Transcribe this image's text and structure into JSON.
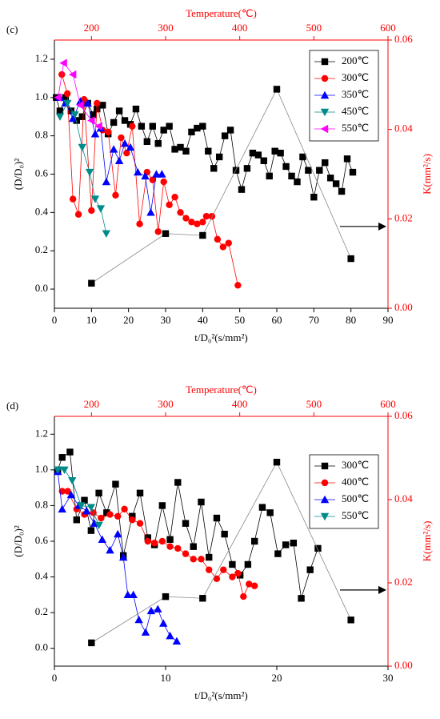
{
  "chart_data": [
    {
      "type": "line",
      "label": "(c)",
      "xlabel": "t/D₀²(s/mm²)",
      "ylabel": "(D/D₀)²",
      "x2label": "Temperature(℃)",
      "y2label": "K(mm²/s)",
      "xlim": [
        0,
        90
      ],
      "xticks": [
        0,
        10,
        20,
        30,
        40,
        50,
        60,
        70,
        80,
        90
      ],
      "ylim": [
        -0.1,
        1.3
      ],
      "yticks": [
        {
          "value": 0,
          "label": "0.0"
        },
        0.2,
        0.4,
        0.6,
        0.8,
        {
          "value": 1,
          "label": "1.0"
        },
        1.2
      ],
      "x2lim": [
        150,
        600
      ],
      "x2ticks": [
        200,
        300,
        400,
        500,
        600
      ],
      "y2lim": [
        0,
        0.06
      ],
      "y2ticks": [
        {
          "value": 0,
          "label": "0.00"
        },
        {
          "value": 0.02,
          "label": "0.02"
        },
        {
          "value": 0.04,
          "label": "0.04"
        },
        {
          "value": 0.06,
          "label": "0.06"
        }
      ],
      "legend": "upper right",
      "series": [
        {
          "name": "200℃",
          "color": "#000000",
          "marker": "square",
          "x": [
            0.5,
            1.5,
            3,
            4.5,
            6,
            7.5,
            9,
            10.5,
            11.5,
            13,
            14.5,
            16,
            17.5,
            19,
            20.5,
            22,
            23.5,
            25,
            26.5,
            28,
            29.5,
            31,
            32.5,
            34,
            35.5,
            37,
            38.5,
            40,
            41.5,
            43,
            44.5,
            46,
            47.5,
            49,
            50.5,
            52,
            53.5,
            55,
            56.5,
            58,
            59.5,
            61,
            62.5,
            64,
            65.5,
            67,
            68.5,
            70,
            71.5,
            73,
            74.5,
            76,
            77.5,
            79,
            80.5
          ],
          "values": [
            1.0,
            0.93,
            1.0,
            0.93,
            0.88,
            0.9,
            0.97,
            0.91,
            0.94,
            0.96,
            0.81,
            0.87,
            0.93,
            0.88,
            0.86,
            0.94,
            0.85,
            0.77,
            0.85,
            0.76,
            0.83,
            0.85,
            0.73,
            0.74,
            0.72,
            0.82,
            0.84,
            0.85,
            0.72,
            0.63,
            0.69,
            0.8,
            0.83,
            0.62,
            0.52,
            0.63,
            0.71,
            0.7,
            0.67,
            0.59,
            0.72,
            0.71,
            0.64,
            0.59,
            0.56,
            0.69,
            0.62,
            0.48,
            0.62,
            0.66,
            0.58,
            0.55,
            0.51,
            0.68,
            0.61
          ]
        },
        {
          "name": "300℃",
          "color": "#ff0000",
          "marker": "circle",
          "x": [
            2,
            3.5,
            5,
            6.5,
            8,
            10,
            11.5,
            13,
            14.5,
            16.5,
            18,
            19.5,
            21,
            23,
            25,
            26.5,
            28,
            29.5,
            31,
            32.5,
            34,
            35.5,
            37,
            38.5,
            40,
            41,
            42.5,
            44,
            45.5,
            47,
            49.5
          ],
          "values": [
            1.12,
            1.02,
            0.47,
            0.39,
            0.99,
            0.41,
            0.97,
            0.83,
            0.82,
            0.49,
            0.79,
            0.71,
            0.85,
            0.34,
            0.61,
            0.57,
            0.3,
            0.56,
            0.44,
            0.48,
            0.4,
            0.37,
            0.35,
            0.34,
            0.35,
            0.38,
            0.38,
            0.26,
            0.22,
            0.24,
            0.02
          ]
        },
        {
          "name": "350℃",
          "color": "#0000ff",
          "marker": "triangle-up",
          "x": [
            1.5,
            3,
            5,
            7,
            9,
            11,
            12.5,
            14,
            16,
            17.5,
            19,
            20.5,
            22.5,
            24.5,
            26,
            27.5,
            29
          ],
          "values": [
            1.0,
            0.97,
            0.89,
            0.98,
            0.97,
            0.81,
            0.84,
            0.56,
            0.73,
            0.67,
            0.76,
            0.74,
            0.61,
            0.59,
            0.4,
            0.6,
            0.6
          ]
        },
        {
          "name": "450℃",
          "color": "#008b8b",
          "marker": "triangle-down",
          "x": [
            1.5,
            3.5,
            5.5,
            7.5,
            9.5,
            11,
            12.5,
            14
          ],
          "values": [
            0.9,
            0.97,
            0.91,
            0.74,
            0.61,
            0.47,
            0.42,
            0.29
          ]
        },
        {
          "name": "550℃",
          "color": "#ff00ff",
          "marker": "triangle-left",
          "x": [
            1,
            2.5,
            5,
            7,
            10,
            12
          ],
          "values": [
            1.0,
            1.18,
            1.12,
            0.96,
            0.88,
            0.85
          ]
        },
        {
          "color": "#000000",
          "line_color": "#888888",
          "marker": "square",
          "axis": "y2",
          "xaxis": "x2",
          "x": [
            200,
            300,
            350,
            450,
            550
          ],
          "values": [
            0.0056,
            0.0167,
            0.0163,
            0.049,
            0.0111
          ]
        }
      ]
    },
    {
      "type": "line",
      "label": "(d)",
      "xlabel": "t/D₀²(s/mm²)",
      "ylabel": "(D/D₀)²",
      "x2label": "Temperature(℃)",
      "y2label": "K(mm²/s)",
      "xlim": [
        0,
        30
      ],
      "xticks": [
        0,
        10,
        20,
        30
      ],
      "ylim": [
        -0.1,
        1.3
      ],
      "yticks": [
        {
          "value": 0,
          "label": "0.0"
        },
        0.2,
        0.4,
        0.6,
        0.8,
        {
          "value": 1,
          "label": "1.0"
        },
        1.2
      ],
      "x2lim": [
        150,
        600
      ],
      "x2ticks": [
        200,
        300,
        400,
        500,
        600
      ],
      "y2lim": [
        0,
        0.06
      ],
      "y2ticks": [
        {
          "value": 0,
          "label": "0.00"
        },
        {
          "value": 0.02,
          "label": "0.02"
        },
        {
          "value": 0.04,
          "label": "0.04"
        },
        {
          "value": 0.06,
          "label": "0.06"
        }
      ],
      "legend": "upper right",
      "series": [
        {
          "name": "300℃",
          "color": "#000000",
          "marker": "square",
          "x": [
            0.3,
            0.7,
            1.4,
            2,
            2.7,
            3.3,
            4,
            4.7,
            5.5,
            6.2,
            7,
            7.7,
            8.4,
            9,
            9.7,
            10.4,
            11.1,
            11.8,
            12.5,
            13.2,
            13.9,
            14.6,
            15.3,
            16,
            16.7,
            17.4,
            18,
            18.7,
            19.4,
            20.1,
            20.8,
            21.5,
            22.2,
            23,
            23.7
          ],
          "values": [
            1.0,
            1.07,
            1.1,
            0.72,
            0.83,
            0.66,
            0.87,
            0.76,
            0.92,
            0.52,
            0.74,
            0.87,
            0.62,
            0.58,
            0.8,
            0.61,
            0.93,
            0.7,
            0.57,
            0.82,
            0.51,
            0.73,
            0.64,
            0.47,
            0.41,
            0.47,
            0.6,
            0.79,
            0.76,
            0.53,
            0.58,
            0.59,
            0.28,
            0.44,
            0.56
          ]
        },
        {
          "name": "400℃",
          "color": "#ff0000",
          "marker": "circle",
          "x": [
            0.7,
            1.2,
            2,
            2.7,
            3.5,
            4.2,
            5,
            5.7,
            6.3,
            7,
            7.7,
            8.4,
            9,
            9.7,
            10.4,
            11.1,
            11.8,
            12.5,
            13.2,
            13.9,
            14.6,
            15.2,
            16,
            16.5,
            17,
            17.5,
            18
          ],
          "values": [
            0.88,
            0.88,
            0.78,
            0.75,
            0.76,
            0.73,
            0.75,
            0.74,
            0.78,
            0.72,
            0.7,
            0.6,
            0.59,
            0.6,
            0.57,
            0.56,
            0.53,
            0.5,
            0.5,
            0.44,
            0.39,
            0.44,
            0.4,
            0.42,
            0.29,
            0.36,
            0.35
          ]
        },
        {
          "name": "500℃",
          "color": "#0000ff",
          "marker": "triangle-up",
          "x": [
            0.3,
            0.7,
            1.5,
            2.2,
            2.9,
            3.6,
            4.3,
            5,
            5.7,
            6.2,
            6.6,
            7.1,
            7.6,
            8.2,
            8.7,
            9.3,
            9.8,
            10.4,
            11
          ],
          "values": [
            0.99,
            0.78,
            0.86,
            0.8,
            0.77,
            0.7,
            0.61,
            0.55,
            0.64,
            0.51,
            0.3,
            0.3,
            0.16,
            0.09,
            0.21,
            0.22,
            0.14,
            0.07,
            0.04
          ]
        },
        {
          "name": "550℃",
          "color": "#008b8b",
          "marker": "triangle-down",
          "x": [
            0.3,
            0.9,
            1.6,
            2.4,
            3.3,
            4
          ],
          "values": [
            1.0,
            1.0,
            0.94,
            0.8,
            0.79,
            0.69
          ]
        },
        {
          "color": "#000000",
          "line_color": "#888888",
          "marker": "square",
          "axis": "y2",
          "xaxis": "x2",
          "x": [
            200,
            300,
            350,
            450,
            550
          ],
          "values": [
            0.0056,
            0.0167,
            0.0163,
            0.049,
            0.0111
          ]
        }
      ]
    }
  ]
}
